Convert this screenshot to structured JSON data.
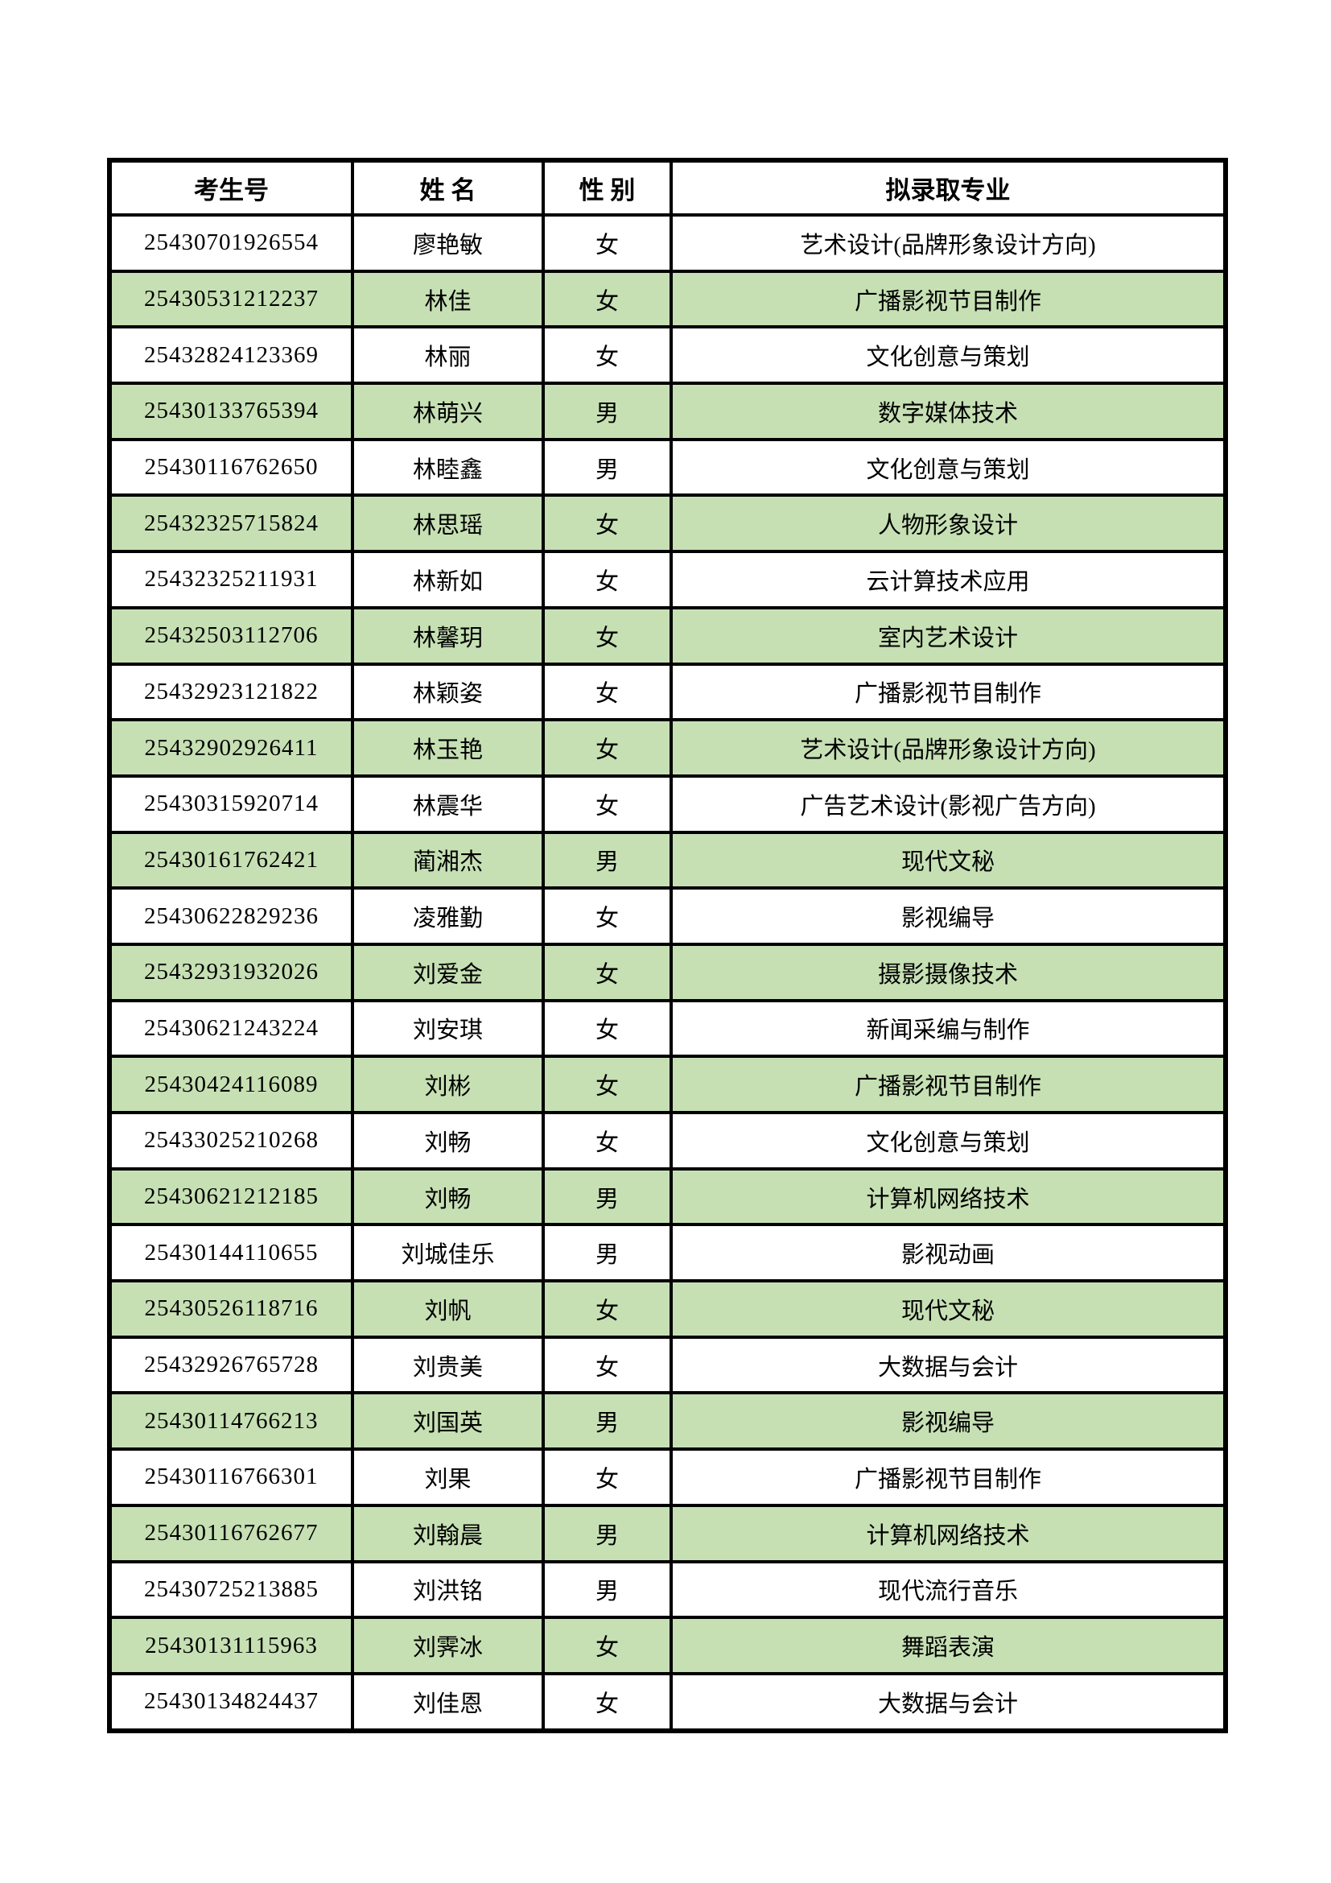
{
  "table": {
    "columns": [
      "考生号",
      "姓 名",
      "性 别",
      "拟录取专业"
    ],
    "banding": {
      "odd_row_color": "#ffffff",
      "even_row_color": "#c6e0b4",
      "border_color": "#000000"
    },
    "rows": [
      {
        "id": "25430701926554",
        "name": "廖艳敏",
        "gender": "女",
        "major": "艺术设计(品牌形象设计方向)"
      },
      {
        "id": "25430531212237",
        "name": "林佳",
        "gender": "女",
        "major": "广播影视节目制作"
      },
      {
        "id": "25432824123369",
        "name": "林丽",
        "gender": "女",
        "major": "文化创意与策划"
      },
      {
        "id": "25430133765394",
        "name": "林萌兴",
        "gender": "男",
        "major": "数字媒体技术"
      },
      {
        "id": "25430116762650",
        "name": "林睦鑫",
        "gender": "男",
        "major": "文化创意与策划"
      },
      {
        "id": "25432325715824",
        "name": "林思瑶",
        "gender": "女",
        "major": "人物形象设计"
      },
      {
        "id": "25432325211931",
        "name": "林新如",
        "gender": "女",
        "major": "云计算技术应用"
      },
      {
        "id": "25432503112706",
        "name": "林馨玥",
        "gender": "女",
        "major": "室内艺术设计"
      },
      {
        "id": "25432923121822",
        "name": "林颖姿",
        "gender": "女",
        "major": "广播影视节目制作"
      },
      {
        "id": "25432902926411",
        "name": "林玉艳",
        "gender": "女",
        "major": "艺术设计(品牌形象设计方向)"
      },
      {
        "id": "25430315920714",
        "name": "林震华",
        "gender": "女",
        "major": "广告艺术设计(影视广告方向)"
      },
      {
        "id": "25430161762421",
        "name": "蔺湘杰",
        "gender": "男",
        "major": "现代文秘"
      },
      {
        "id": "25430622829236",
        "name": "凌雅勤",
        "gender": "女",
        "major": "影视编导"
      },
      {
        "id": "25432931932026",
        "name": "刘爱金",
        "gender": "女",
        "major": "摄影摄像技术"
      },
      {
        "id": "25430621243224",
        "name": "刘安琪",
        "gender": "女",
        "major": "新闻采编与制作"
      },
      {
        "id": "25430424116089",
        "name": "刘彬",
        "gender": "女",
        "major": "广播影视节目制作"
      },
      {
        "id": "25433025210268",
        "name": "刘畅",
        "gender": "女",
        "major": "文化创意与策划"
      },
      {
        "id": "25430621212185",
        "name": "刘畅",
        "gender": "男",
        "major": "计算机网络技术"
      },
      {
        "id": "25430144110655",
        "name": "刘城佳乐",
        "gender": "男",
        "major": "影视动画"
      },
      {
        "id": "25430526118716",
        "name": "刘帆",
        "gender": "女",
        "major": "现代文秘"
      },
      {
        "id": "25432926765728",
        "name": "刘贵美",
        "gender": "女",
        "major": "大数据与会计"
      },
      {
        "id": "25430114766213",
        "name": "刘国英",
        "gender": "男",
        "major": "影视编导"
      },
      {
        "id": "25430116766301",
        "name": "刘果",
        "gender": "女",
        "major": "广播影视节目制作"
      },
      {
        "id": "25430116762677",
        "name": "刘翰晨",
        "gender": "男",
        "major": "计算机网络技术"
      },
      {
        "id": "25430725213885",
        "name": "刘洪铭",
        "gender": "男",
        "major": "现代流行音乐"
      },
      {
        "id": "25430131115963",
        "name": "刘霁冰",
        "gender": "女",
        "major": "舞蹈表演"
      },
      {
        "id": "25430134824437",
        "name": "刘佳恩",
        "gender": "女",
        "major": "大数据与会计"
      }
    ]
  }
}
